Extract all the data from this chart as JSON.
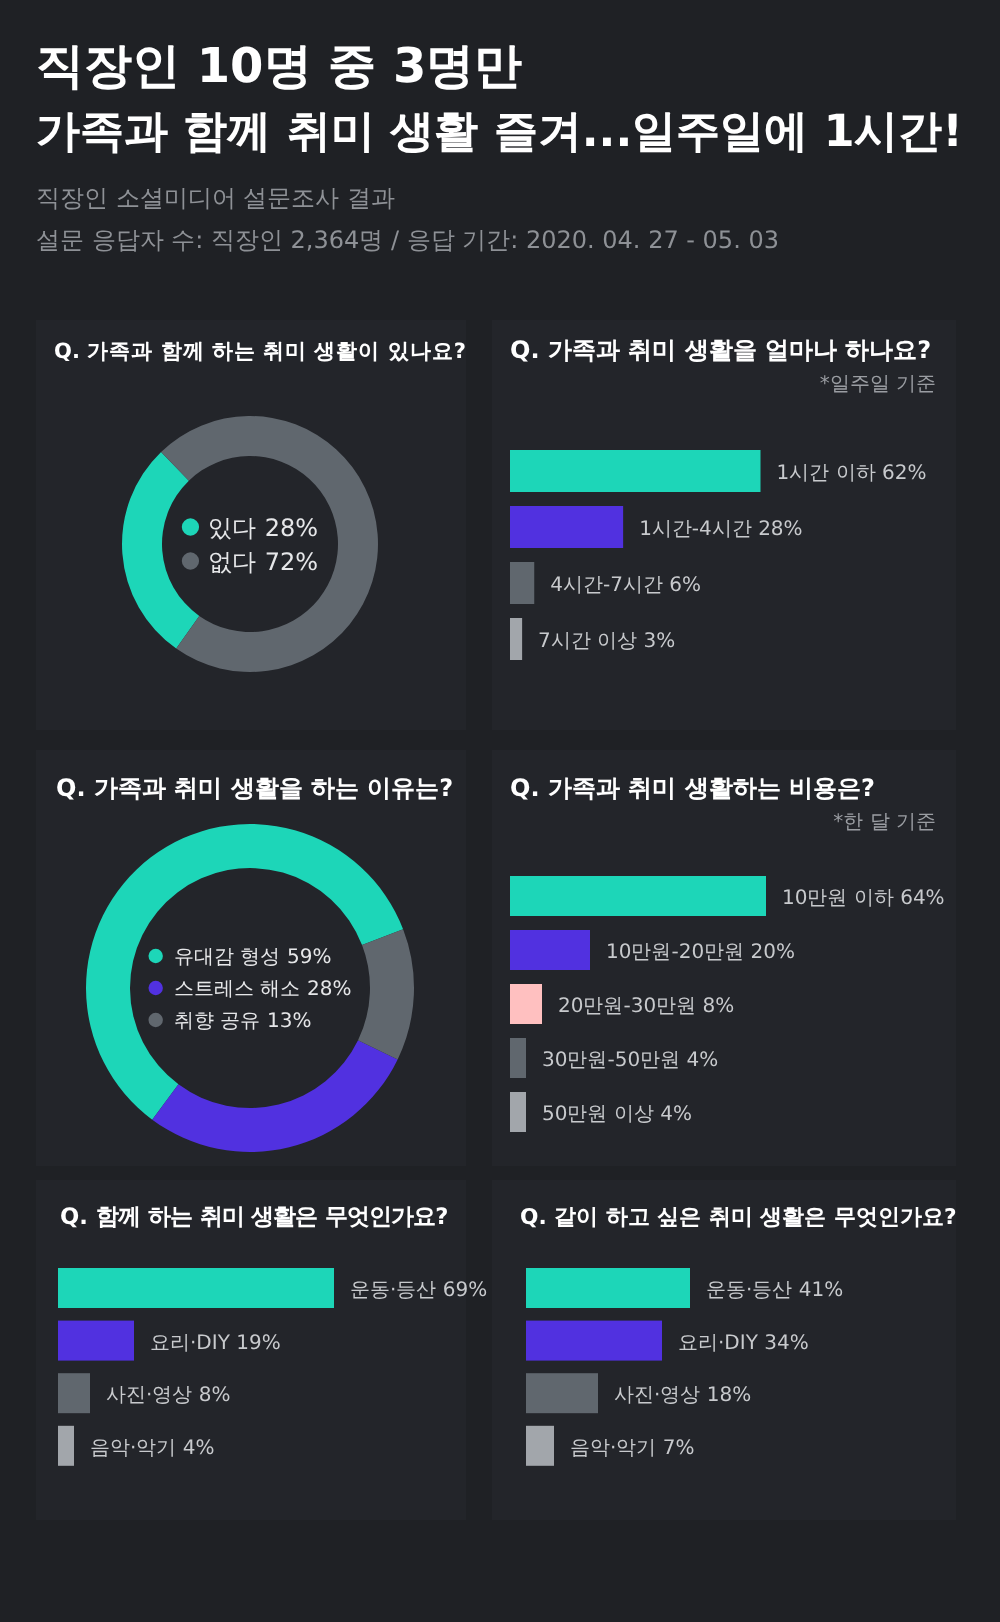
{
  "chart_data": [
    {
      "type": "other",
      "title": "직장인 10명 중 3명만\n가족과 함께 취미 생활 즐겨...일주일에 1시간!",
      "subtitle": "직장인 소셜미디어 설문조사 결과",
      "annotations": [
        "설문 응답자 수: 직장인 2,364명 / 응답 기간: 2020. 04. 27 - 05. 03"
      ]
    },
    {
      "type": "donut",
      "title": "Q. 가족과 함께 하는 취미 생활이 있나요?",
      "categories": [
        "있다",
        "없다"
      ],
      "values": [
        28,
        72
      ],
      "colors": [
        "#1dd6b8",
        "#60676e"
      ],
      "value_labels": [
        "28%",
        "72%"
      ],
      "legend": "center"
    },
    {
      "type": "bar",
      "orientation": "horizontal",
      "title": "Q. 가족과 취미 생활을 얼마나 하나요?",
      "annotations": [
        "*일주일 기준"
      ],
      "categories": [
        null,
        null,
        null,
        null
      ],
      "values": [
        62,
        28,
        6,
        3
      ],
      "colors": [
        "#1dd6b8",
        "#5131e0",
        "#60676e",
        "#a2a6ab"
      ],
      "value_labels": [
        "1시간 이하 62%",
        "1시간-4시간 28%",
        "4시간-7시간 6%",
        "7시간 이상 3%"
      ]
    },
    {
      "type": "donut",
      "title": "Q. 가족과 취미 생활을 하는 이유는?",
      "categories": [
        "유대감 형성",
        "스트레스 해소",
        "취향 공유"
      ],
      "values": [
        59,
        28,
        13
      ],
      "colors": [
        "#1dd6b8",
        "#5131e0",
        "#60676e"
      ],
      "value_labels": [
        "59%",
        "28%",
        "13%"
      ],
      "legend": "center"
    },
    {
      "type": "bar",
      "orientation": "horizontal",
      "title": "Q. 가족과 취미 생활하는 비용은?",
      "annotations": [
        "*한 달 기준"
      ],
      "categories": [
        null,
        null,
        null,
        null,
        null
      ],
      "values": [
        64,
        20,
        8,
        4,
        4
      ],
      "colors": [
        "#1dd6b8",
        "#5131e0",
        "#ffc0c0",
        "#60676e",
        "#a2a6ab"
      ],
      "value_labels": [
        "10만원 이하 64%",
        "10만원-20만원 20%",
        "20만원-30만원 8%",
        "30만원-50만원 4%",
        "50만원 이상 4%"
      ]
    },
    {
      "type": "bar",
      "orientation": "horizontal",
      "title": "Q. 함께 하는 취미 생활은 무엇인가요?",
      "categories": [
        null,
        null,
        null,
        null
      ],
      "values": [
        69,
        19,
        8,
        4
      ],
      "colors": [
        "#1dd6b8",
        "#5131e0",
        "#60676e",
        "#a2a6ab"
      ],
      "value_labels": [
        "운동·등산 69%",
        "요리·DIY 19%",
        "사진·영상 8%",
        "음악·악기 4%"
      ]
    },
    {
      "type": "bar",
      "orientation": "horizontal",
      "title": "Q. 같이 하고 싶은 취미 생활은 무엇인가요?",
      "categories": [
        null,
        null,
        null,
        null
      ],
      "values": [
        41,
        34,
        18,
        7
      ],
      "colors": [
        "#1dd6b8",
        "#5131e0",
        "#60676e",
        "#a2a6ab"
      ],
      "value_labels": [
        "운동·등산 41%",
        "요리·DIY 34%",
        "사진·영상 18%",
        "음악·악기 7%"
      ]
    }
  ]
}
